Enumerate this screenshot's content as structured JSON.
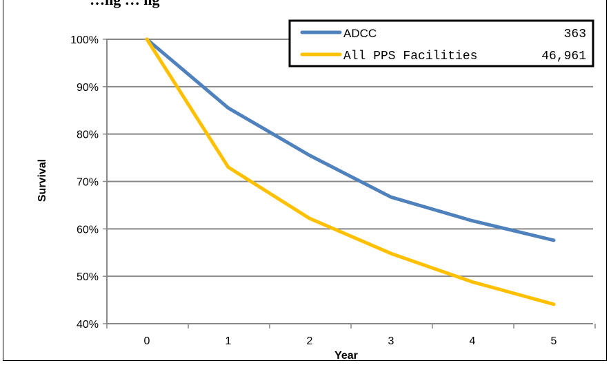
{
  "chart_data": {
    "type": "line",
    "title": "…ng … ng",
    "xlabel": "Year",
    "ylabel": "Survival",
    "x": [
      0,
      1,
      2,
      3,
      4,
      5
    ],
    "x_tick_labels": [
      "0",
      "1",
      "2",
      "3",
      "4",
      "5"
    ],
    "y_tick_labels": [
      "40%",
      "50%",
      "60%",
      "70%",
      "80%",
      "90%",
      "100%"
    ],
    "ylim": [
      40,
      100
    ],
    "grid": true,
    "legend_position": "top-right",
    "series": [
      {
        "name": "ADCC",
        "count": "363",
        "color": "#4F81BD",
        "values": [
          100,
          85.5,
          75.5,
          66.7,
          61.7,
          57.6
        ]
      },
      {
        "name": "All PPS Facilities",
        "count": "46,961",
        "color": "#FFC000",
        "values": [
          100,
          73,
          62.2,
          54.8,
          48.8,
          44.1
        ]
      }
    ]
  }
}
